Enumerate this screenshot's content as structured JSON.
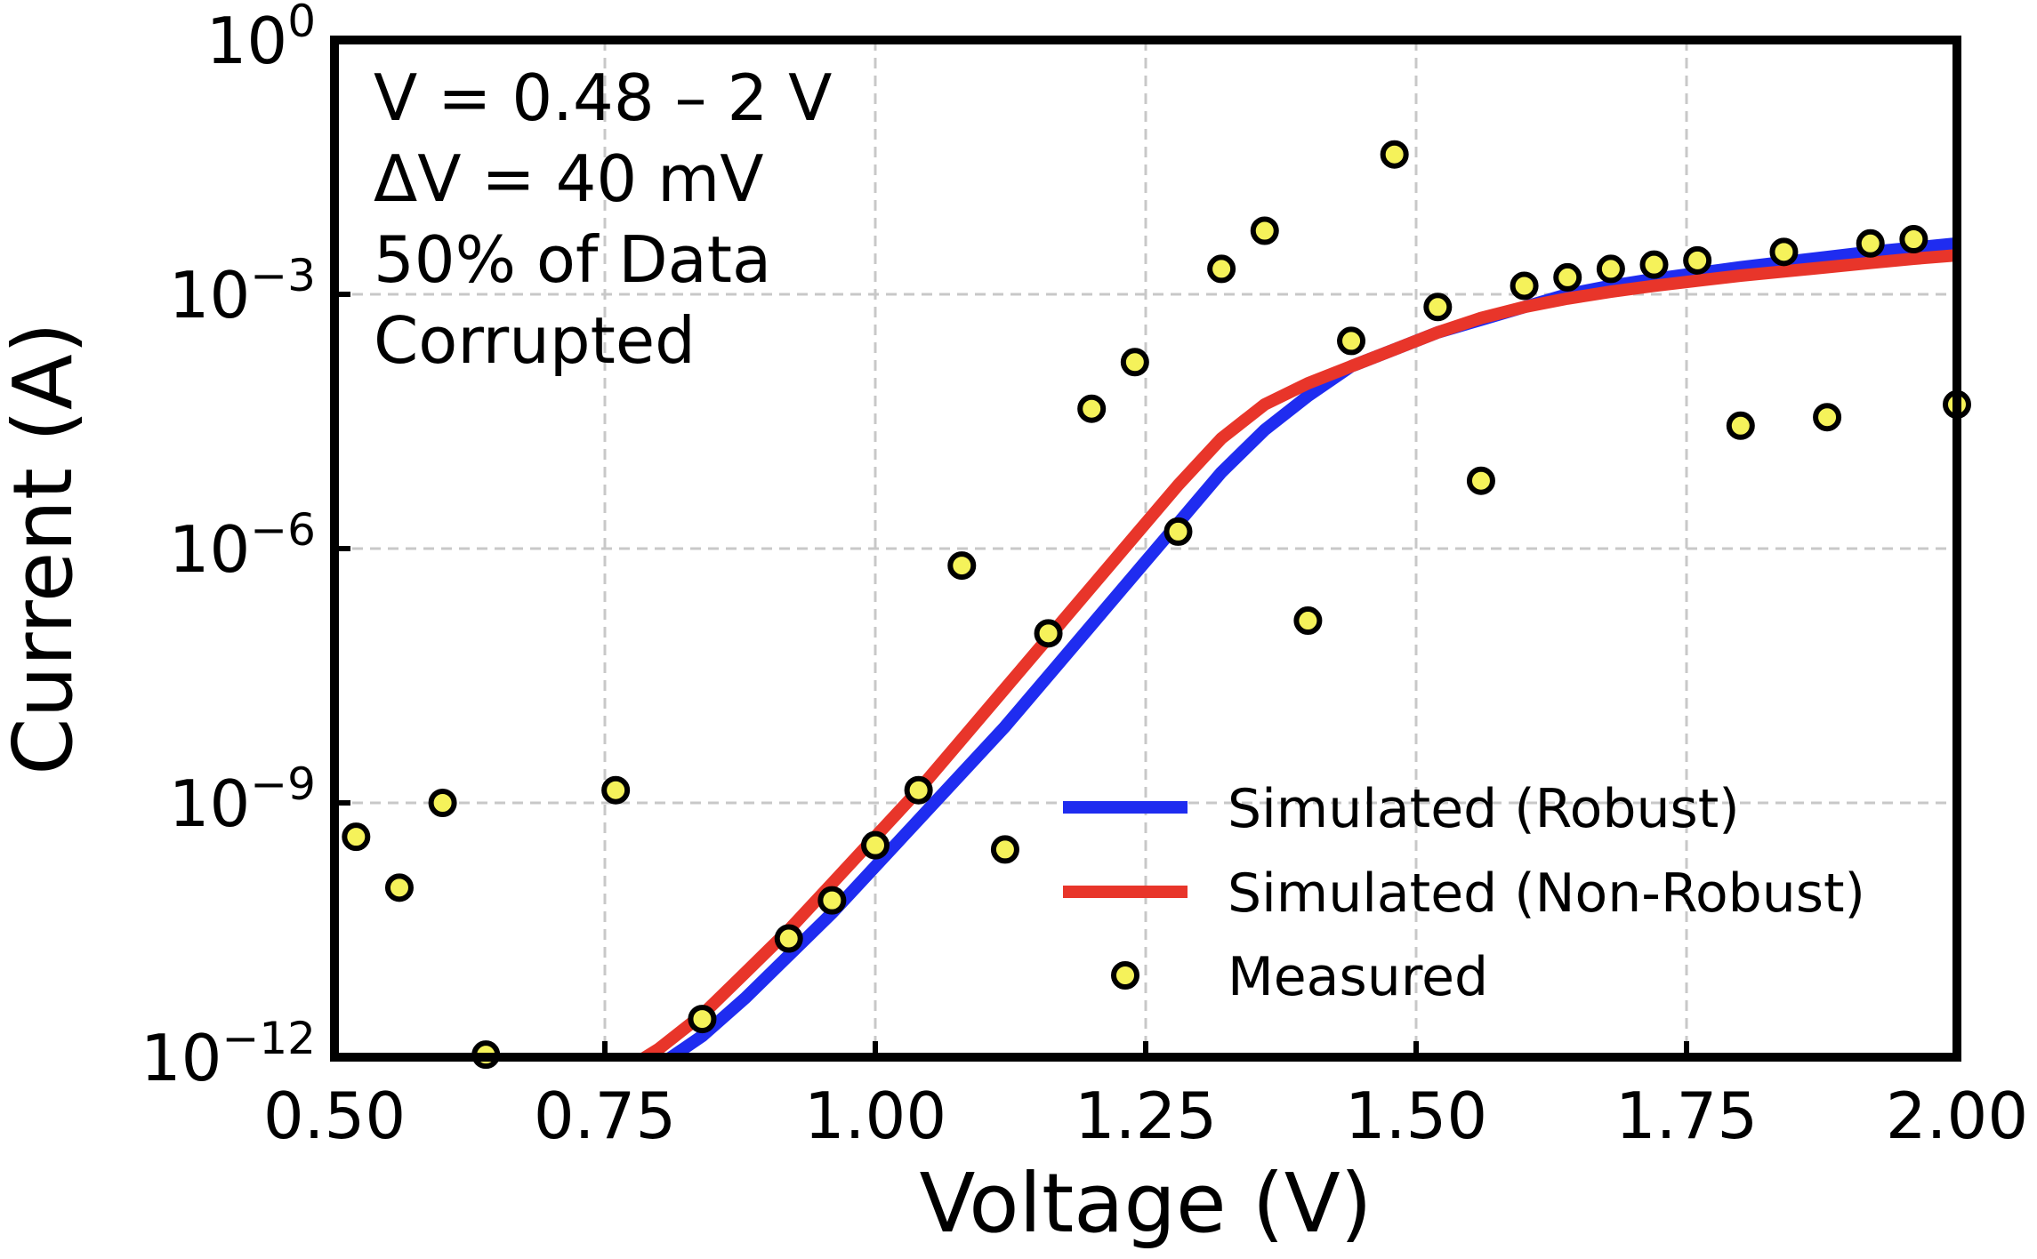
{
  "chart_data": {
    "type": "scatter",
    "xlabel": "Voltage (V)",
    "ylabel": "Current (A)",
    "xlim": [
      0.5,
      2.0
    ],
    "ylim_log10": [
      -12,
      0
    ],
    "y_scale": "log",
    "grid": true,
    "x_ticks": [
      {
        "value": 0.5,
        "label": "0.50"
      },
      {
        "value": 0.75,
        "label": "0.75"
      },
      {
        "value": 1.0,
        "label": "1.00"
      },
      {
        "value": 1.25,
        "label": "1.25"
      },
      {
        "value": 1.5,
        "label": "1.50"
      },
      {
        "value": 1.75,
        "label": "1.75"
      },
      {
        "value": 2.0,
        "label": "2.00"
      }
    ],
    "y_ticks": [
      {
        "log10": 0,
        "base": "10",
        "exp": "0"
      },
      {
        "log10": -3,
        "base": "10",
        "exp": "−3"
      },
      {
        "log10": -6,
        "base": "10",
        "exp": "−6"
      },
      {
        "log10": -9,
        "base": "10",
        "exp": "−9"
      },
      {
        "log10": -12,
        "base": "10",
        "exp": "−12"
      }
    ],
    "annotation": [
      "V = 0.48 – 2 V",
      "ΔV = 40 mV",
      "50% of Data",
      "Corrupted"
    ],
    "legend_position": "lower-right",
    "series": [
      {
        "name": "Simulated (Robust)",
        "kind": "line",
        "color": "#1f2cf0",
        "x": [
          0.5,
          0.75,
          0.8,
          0.84,
          0.88,
          0.92,
          0.96,
          1.0,
          1.04,
          1.08,
          1.12,
          1.16,
          1.2,
          1.24,
          1.28,
          1.32,
          1.36,
          1.4,
          1.44,
          1.48,
          1.52,
          1.56,
          1.6,
          1.64,
          1.68,
          1.72,
          1.76,
          1.8,
          1.84,
          1.88,
          1.92,
          1.96,
          2.0
        ],
        "y_log10": [
          -12.6,
          -12.3,
          -12.1,
          -11.75,
          -11.3,
          -10.8,
          -10.3,
          -9.75,
          -9.2,
          -8.65,
          -8.1,
          -7.5,
          -6.9,
          -6.3,
          -5.7,
          -5.1,
          -4.6,
          -4.2,
          -3.85,
          -3.65,
          -3.45,
          -3.3,
          -3.15,
          -3.0,
          -2.9,
          -2.82,
          -2.75,
          -2.68,
          -2.62,
          -2.56,
          -2.5,
          -2.45,
          -2.4
        ]
      },
      {
        "name": "Simulated (Non-Robust)",
        "kind": "line",
        "color": "#e8352a",
        "x": [
          0.5,
          0.75,
          0.8,
          0.84,
          0.88,
          0.92,
          0.96,
          1.0,
          1.04,
          1.08,
          1.12,
          1.16,
          1.2,
          1.24,
          1.28,
          1.32,
          1.36,
          1.4,
          1.44,
          1.48,
          1.52,
          1.56,
          1.6,
          1.64,
          1.68,
          1.72,
          1.76,
          1.8,
          1.84,
          1.88,
          1.92,
          1.96,
          2.0
        ],
        "y_log10": [
          -12.6,
          -12.3,
          -11.9,
          -11.5,
          -11.0,
          -10.5,
          -9.95,
          -9.4,
          -8.85,
          -8.25,
          -7.65,
          -7.05,
          -6.45,
          -5.85,
          -5.25,
          -4.7,
          -4.3,
          -4.05,
          -3.85,
          -3.65,
          -3.45,
          -3.28,
          -3.15,
          -3.05,
          -2.97,
          -2.9,
          -2.84,
          -2.78,
          -2.73,
          -2.68,
          -2.63,
          -2.58,
          -2.54
        ]
      },
      {
        "name": "Measured",
        "kind": "scatter",
        "color": "#f5f25a",
        "edge_color": "#000000",
        "x": [
          0.52,
          0.56,
          0.6,
          0.64,
          0.76,
          0.84,
          0.92,
          0.96,
          1.0,
          1.04,
          1.08,
          1.12,
          1.16,
          1.2,
          1.24,
          1.28,
          1.32,
          1.36,
          1.4,
          1.44,
          1.48,
          1.52,
          1.56,
          1.6,
          1.64,
          1.68,
          1.72,
          1.76,
          1.8,
          1.84,
          1.88,
          1.92,
          1.96,
          2.0
        ],
        "y_log10": [
          -9.4,
          -10.0,
          -9.0,
          -11.97,
          -8.85,
          -11.55,
          -10.6,
          -10.15,
          -9.5,
          -8.85,
          -6.2,
          -9.55,
          -7.0,
          -4.35,
          -3.8,
          -5.8,
          -2.7,
          -2.25,
          -6.85,
          -3.55,
          -1.35,
          -3.15,
          -5.2,
          -2.9,
          -2.8,
          -2.7,
          -2.65,
          -2.6,
          -4.55,
          -2.5,
          -4.45,
          -2.4,
          -2.35,
          -4.3
        ]
      }
    ]
  }
}
